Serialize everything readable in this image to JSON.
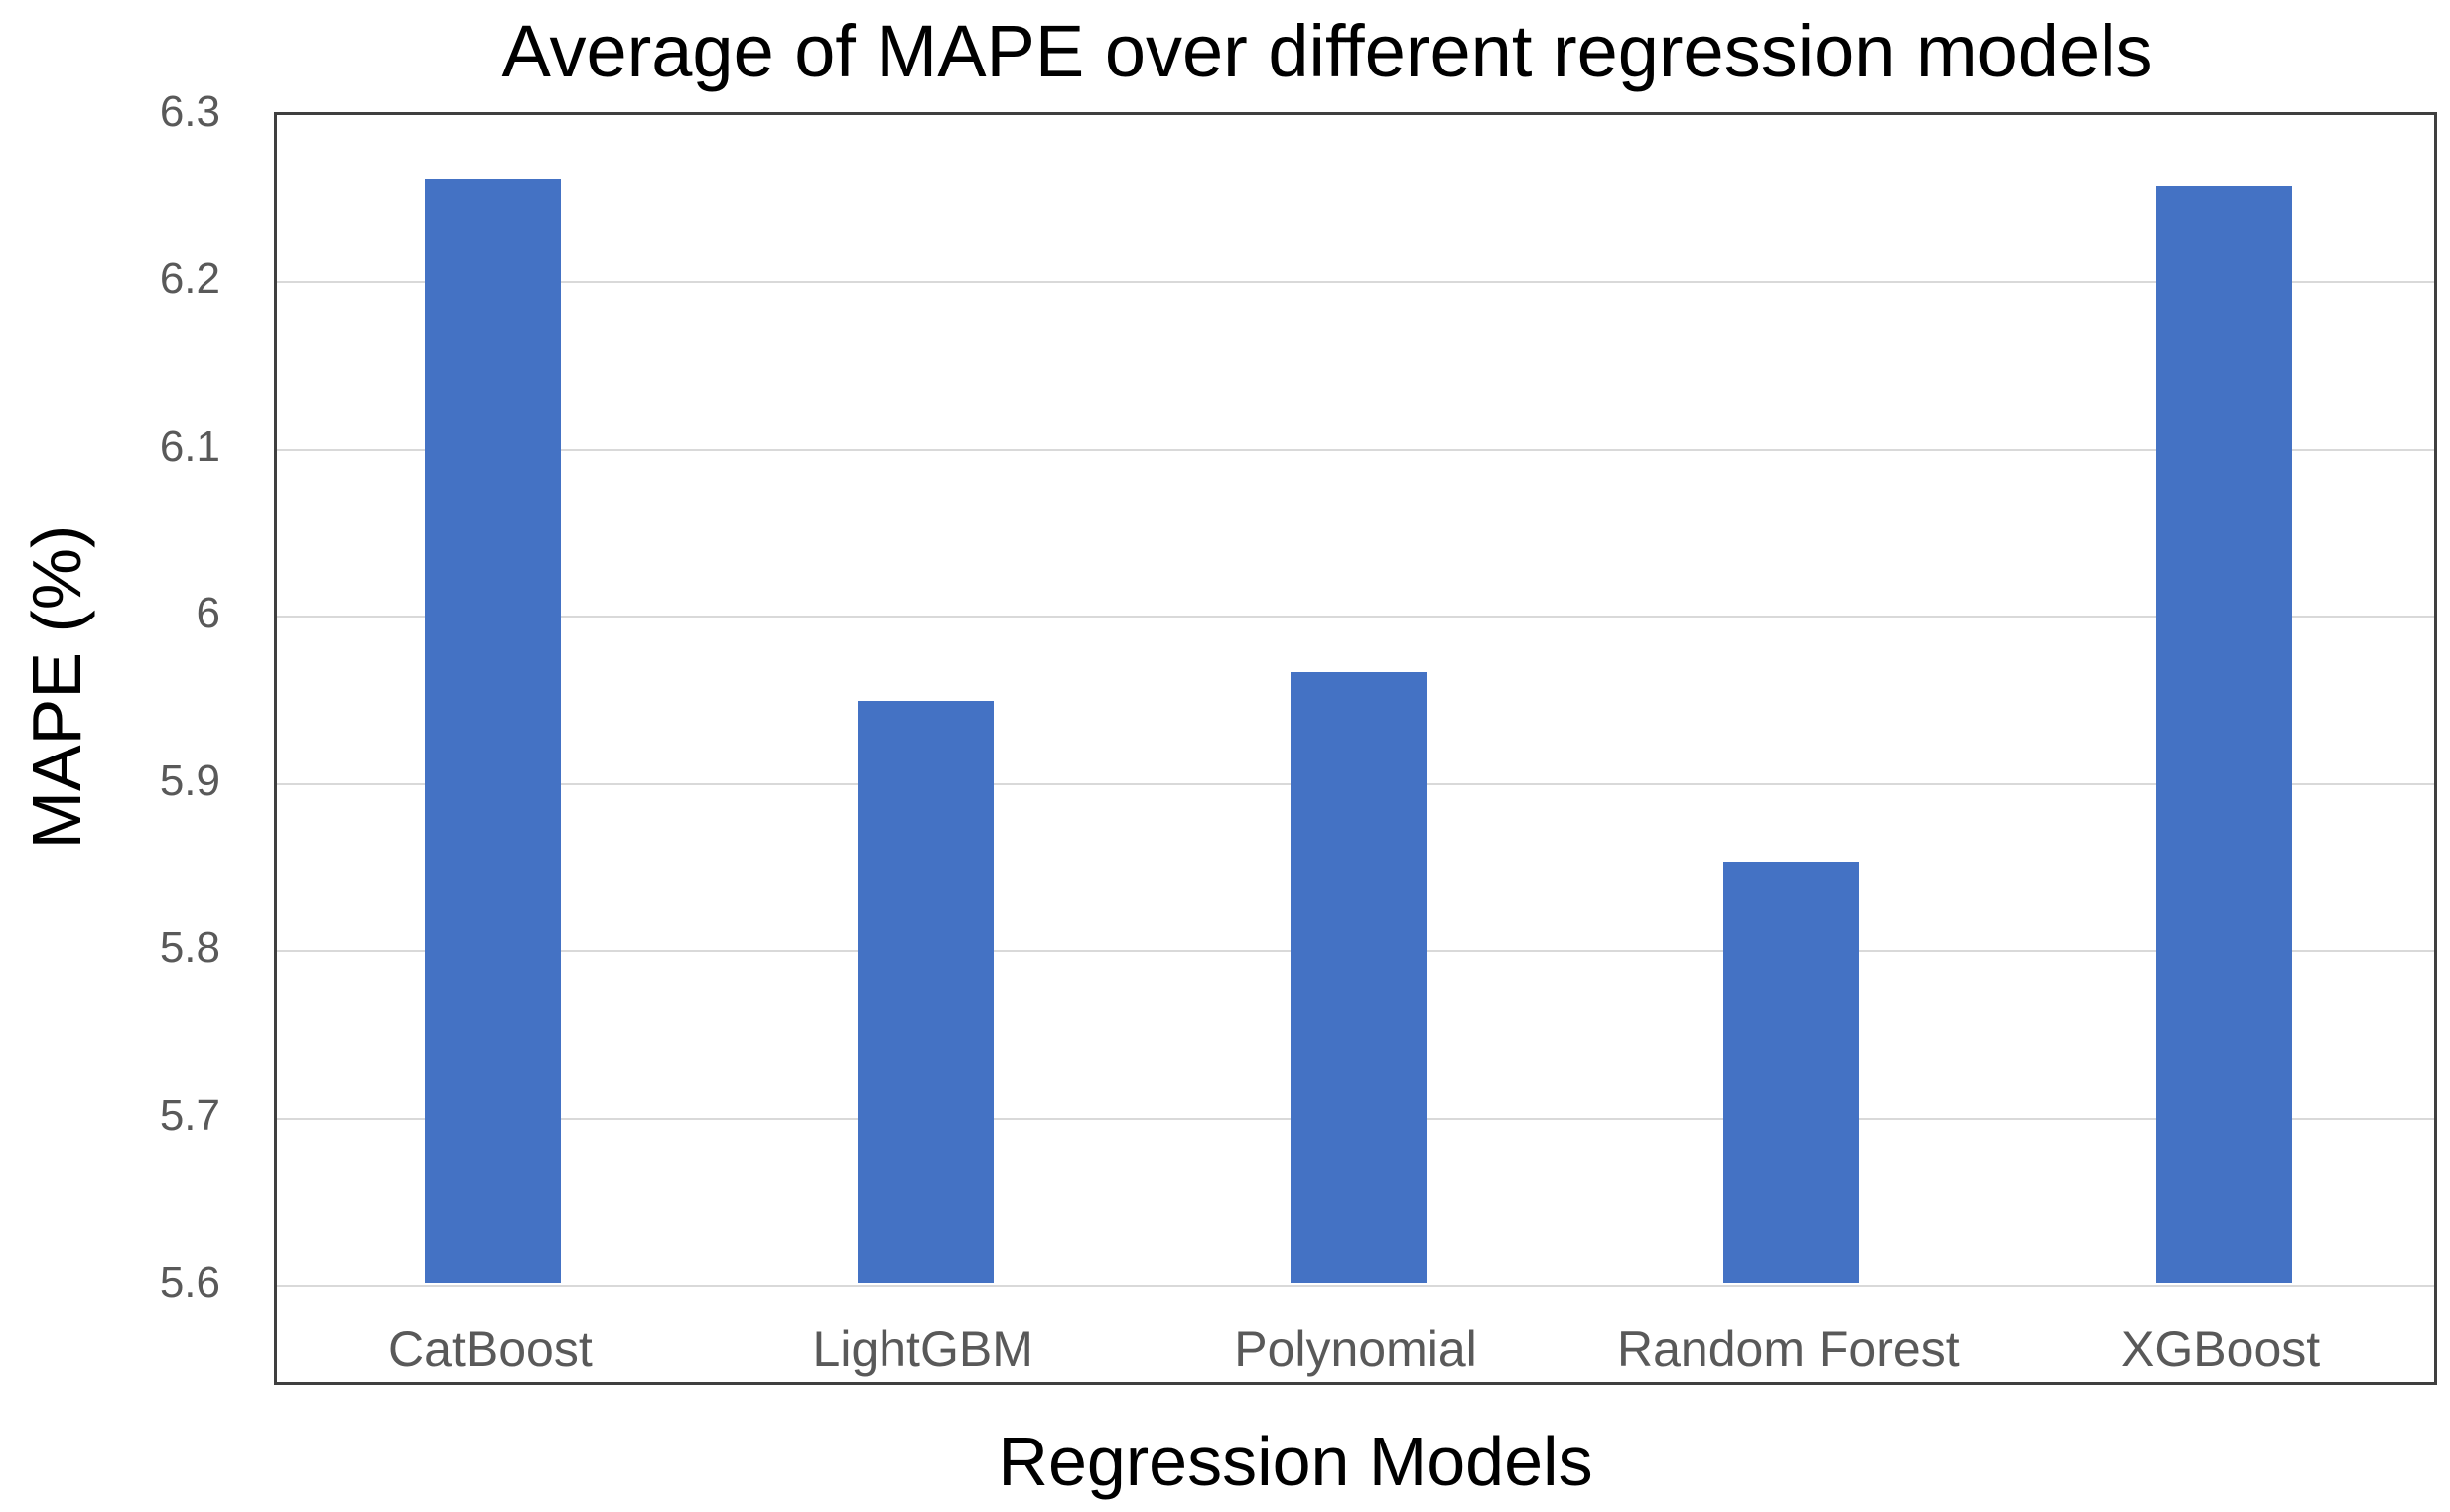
{
  "chart_data": {
    "type": "bar",
    "title": "Average of MAPE over different regression models",
    "xlabel": "Regression Models",
    "ylabel": "MAPE (%)",
    "categories": [
      "CatBoost",
      "LightGBM",
      "Polynomial",
      "Random Forest",
      "XGBoost"
    ],
    "values": [
      6.26,
      5.948,
      5.965,
      5.852,
      6.256
    ],
    "ylim": [
      5.6,
      6.3
    ],
    "ytick_labels": [
      "6.3",
      "6.2",
      "6.1",
      "6",
      "5.9",
      "5.8",
      "5.7",
      "5.6"
    ],
    "ytick_values": [
      6.3,
      6.2,
      6.1,
      6.0,
      5.9,
      5.8,
      5.7,
      5.6
    ],
    "grid": "horizontal",
    "legend": "none",
    "colors": {
      "bar": "#4472C4",
      "gridline": "#D9D9D9",
      "frame": "#3F3F3F",
      "tick_label": "#595959",
      "text": "#000000"
    }
  }
}
